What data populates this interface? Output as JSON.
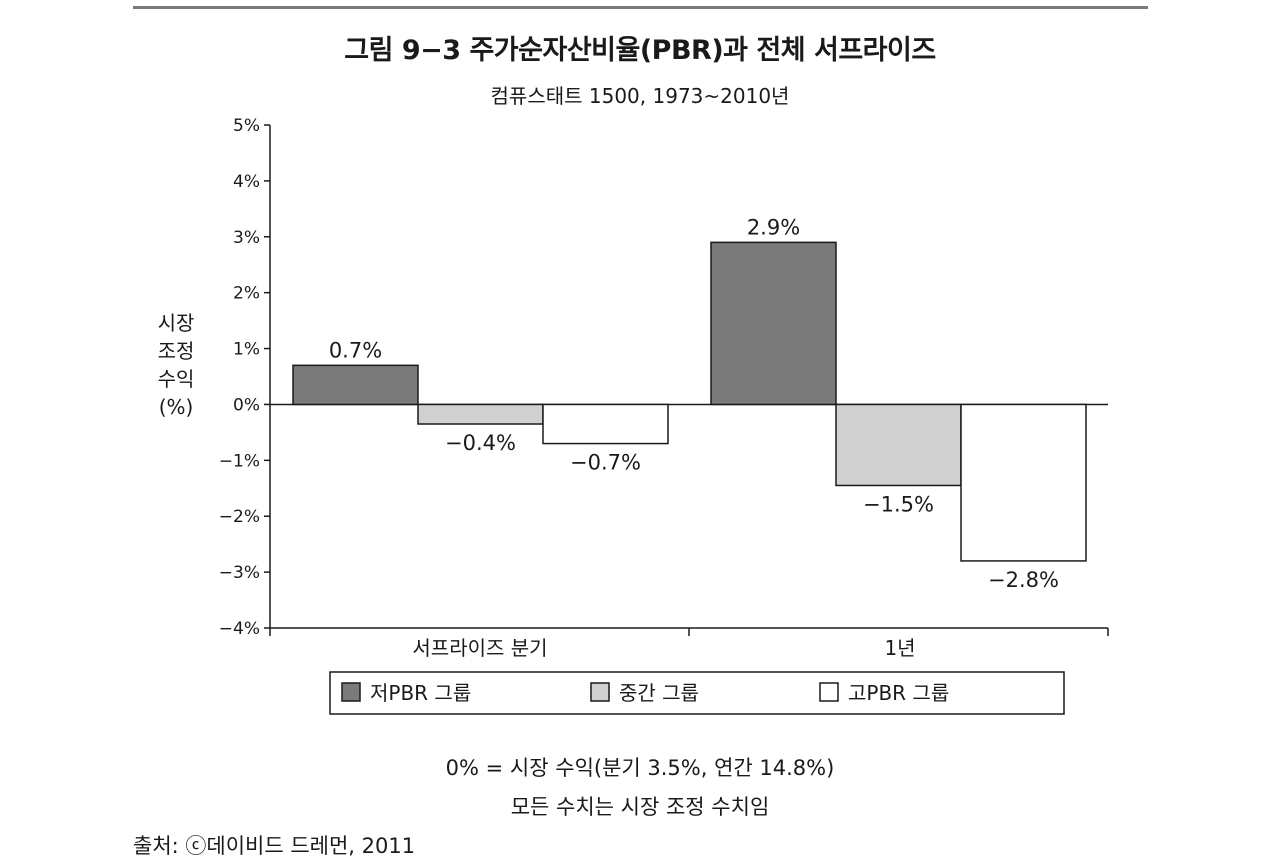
{
  "header": {
    "title": "그림 9−3  주가순자산비율(PBR)과 전체 서프라이즈",
    "subtitle": "컴퓨스태트 1500, 1973~2010년"
  },
  "chart_data": {
    "type": "bar",
    "title": "그림 9−3  주가순자산비율(PBR)과 전체 서프라이즈",
    "subtitle": "컴퓨스태트 1500, 1973~2010년",
    "ylabel_lines": [
      "시장",
      "조정",
      "수익",
      "(%)"
    ],
    "ylim": [
      -4,
      5
    ],
    "yticks": [
      {
        "value": 5,
        "label": "5%"
      },
      {
        "value": 4,
        "label": "4%"
      },
      {
        "value": 3,
        "label": "3%"
      },
      {
        "value": 2,
        "label": "2%"
      },
      {
        "value": 1,
        "label": "1%"
      },
      {
        "value": 0,
        "label": "0%"
      },
      {
        "value": -1,
        "label": "−1%"
      },
      {
        "value": -2,
        "label": "−2%"
      },
      {
        "value": -3,
        "label": "−3%"
      },
      {
        "value": -4,
        "label": "−4%"
      }
    ],
    "categories": [
      "서프라이즈 분기",
      "1년"
    ],
    "series": [
      {
        "name": "저PBR 그룹",
        "color": "#7a7a7a",
        "values": [
          0.7,
          2.9
        ],
        "labels": [
          "0.7%",
          "2.9%"
        ]
      },
      {
        "name": "중간 그룹",
        "color": "#d0d0d0",
        "values": [
          -0.35,
          -1.45
        ],
        "labels": [
          "−0.4%",
          "−1.5%"
        ]
      },
      {
        "name": "고PBR 그룹",
        "color": "#ffffff",
        "values": [
          -0.7,
          -2.8
        ],
        "labels": [
          "−0.7%",
          "−2.8%"
        ]
      }
    ],
    "legend_position": "bottom",
    "grid": false
  },
  "notes": {
    "line1": "0% = 시장 수익(분기 3.5%, 연간 14.8%)",
    "line2": "모든 수치는 시장 조정 수치임"
  },
  "source": "출처: ⓒ데이비드 드레먼, 2011"
}
